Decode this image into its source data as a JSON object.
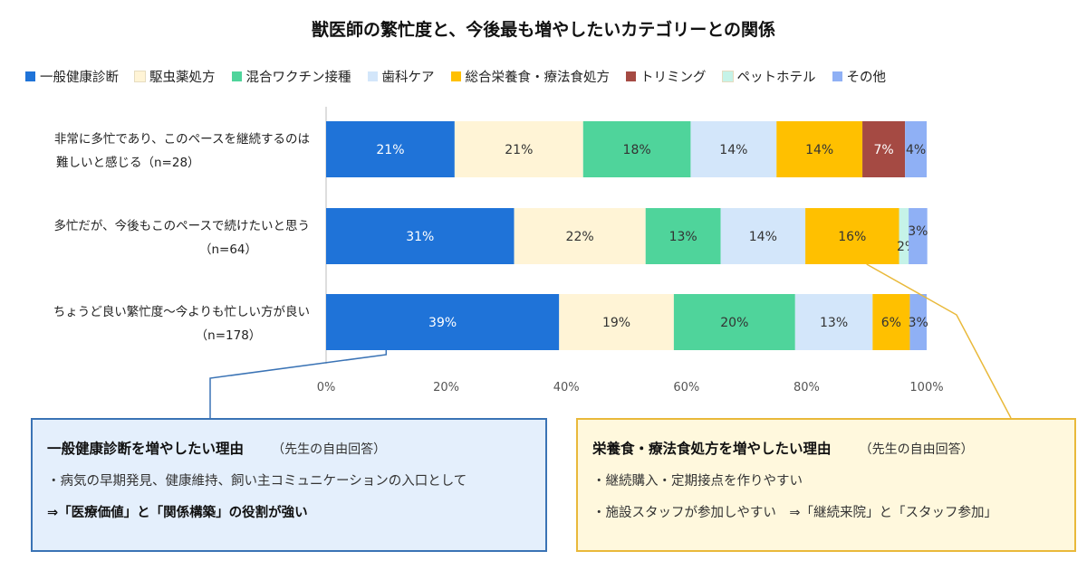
{
  "chart_data": {
    "type": "bar",
    "orientation": "horizontal-stacked",
    "title": "獣医師の繁忙度と、今後最も増やしたいカテゴリーとの関係",
    "legend_position": "top",
    "series": [
      {
        "name": "一般健康診断",
        "color": "#1f73d8"
      },
      {
        "name": "駆虫薬処方",
        "color": "#fff4d6"
      },
      {
        "name": "混合ワクチン接種",
        "color": "#4fd49b"
      },
      {
        "name": "歯科ケア",
        "color": "#d3e6fa"
      },
      {
        "name": "総合栄養食・療法食処方",
        "color": "#ffc000"
      },
      {
        "name": "トリミング",
        "color": "#a54a43"
      },
      {
        "name": "ペットホテル",
        "color": "#c6f3e8"
      },
      {
        "name": "その他",
        "color": "#8fb0f5"
      }
    ],
    "categories": [
      {
        "line1": "非常に多忙であり、このペースを継続するのは",
        "line2": "難しいと感じる（n=28）"
      },
      {
        "line1": "多忙だが、今後もこのペースで続けたいと思う",
        "line2": "（n=64）"
      },
      {
        "line1": "ちょうど良い繁忙度～今よりも忙しい方が良い",
        "line2": "（n=178）"
      }
    ],
    "values": [
      [
        21.4,
        21.4,
        17.9,
        14.3,
        14.3,
        7.1,
        0,
        3.6
      ],
      [
        31.3,
        21.9,
        12.5,
        14.1,
        15.6,
        0,
        1.6,
        3.1
      ],
      [
        38.8,
        19.1,
        20.2,
        12.9,
        6.2,
        0,
        0,
        2.8
      ]
    ],
    "labels": [
      [
        "21%",
        "21%",
        "18%",
        "14%",
        "14%",
        "7%",
        "",
        "4%"
      ],
      [
        "31%",
        "22%",
        "13%",
        "14%",
        "16%",
        "",
        "2%",
        "3%"
      ],
      [
        "39%",
        "19%",
        "20%",
        "13%",
        "6%",
        "",
        "",
        "3%"
      ]
    ],
    "xlim": [
      0,
      100
    ],
    "xticks": [
      "0%",
      "20%",
      "40%",
      "60%",
      "80%",
      "100%"
    ],
    "grid": false
  },
  "callouts": {
    "left": {
      "title": "一般健康診断を増やしたい理由",
      "sub": "（先生の自由回答）",
      "line1": "・病気の早期発見、健康維持、飼い主コミュニケーションの入口として",
      "line2": "⇒「医療価値」と「関係構築」の役割が強い"
    },
    "right": {
      "title": "栄養食・療法食処方を増やしたい理由",
      "sub": "（先生の自由回答）",
      "line1": "・継続購入・定期接点を作りやすい",
      "line2": "・施設スタッフが参加しやすい　⇒「継続来院」と「スタッフ参加」"
    }
  }
}
